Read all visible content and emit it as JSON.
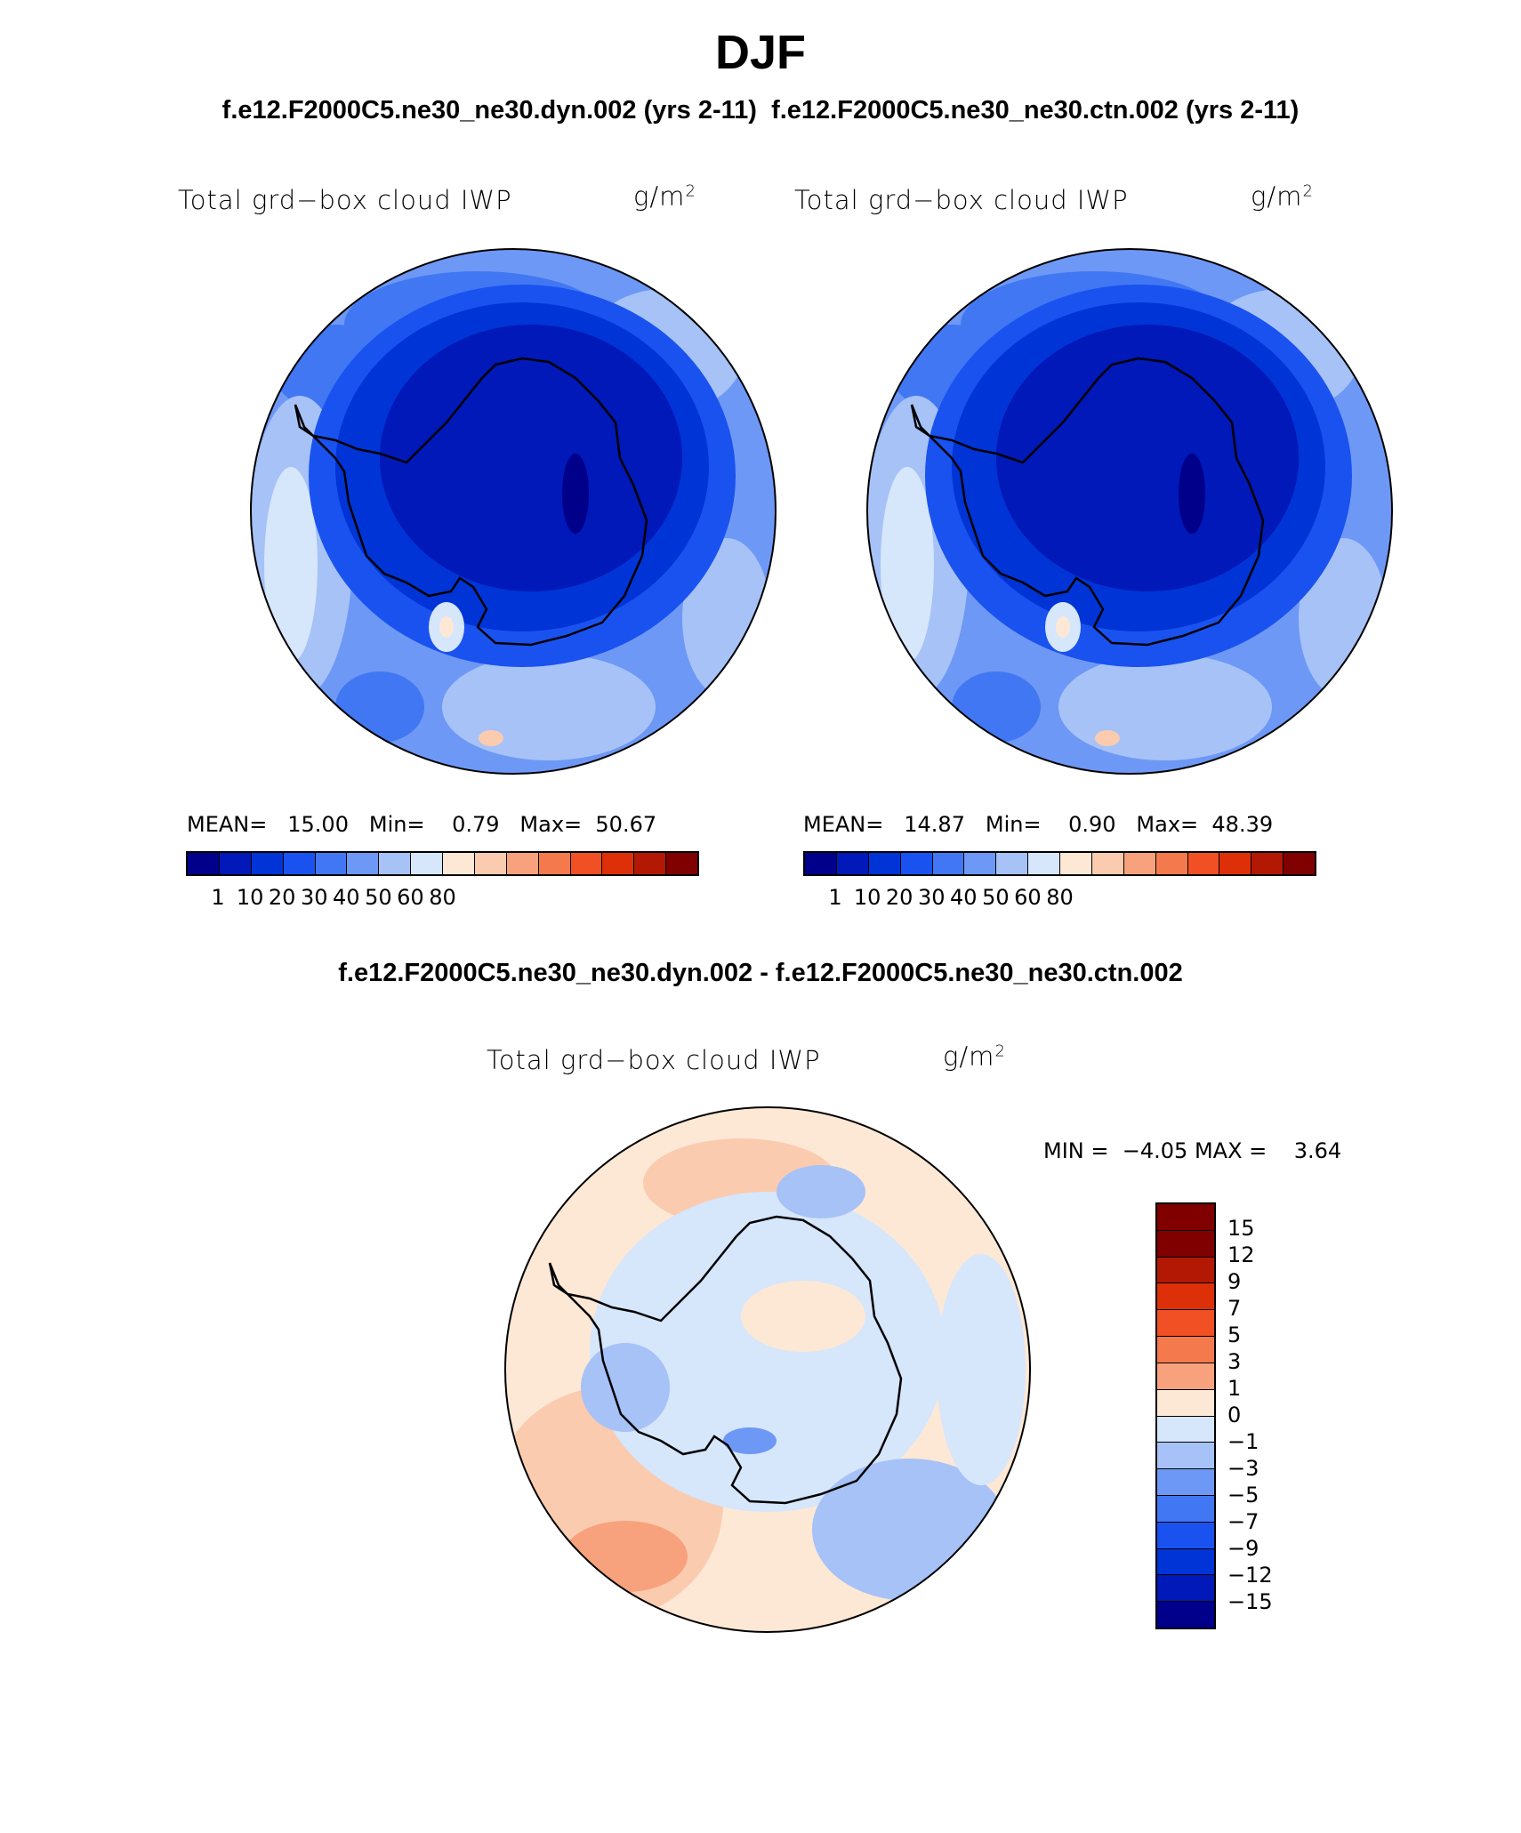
{
  "title": "DJF",
  "subtitle": "f.e12.F2000C5.ne30_ne30.dyn.002 (yrs 2-11)  f.e12.F2000C5.ne30_ne30.ctn.002 (yrs 2-11)",
  "diff_title": "f.e12.F2000C5.ne30_ne30.dyn.002 - f.e12.F2000C5.ne30_ne30.ctn.002",
  "field_label": "Total grd−box cloud IWP",
  "units_base": "g/m",
  "units_exp": "2",
  "stats_mean_label": "MEAN=",
  "stats_min_label": "Min=",
  "stats_max_label": "Max=",
  "panel1": {
    "mean": "15.00",
    "min": "0.79",
    "max": "50.67"
  },
  "panel2": {
    "mean": "14.87",
    "min": "0.90",
    "max": "48.39"
  },
  "diff_stats": {
    "min_label": "MIN =",
    "min": "−4.05",
    "max_label": "MAX =",
    "max": "3.64"
  },
  "colorbar_ticks": [
    "1",
    "10",
    "20",
    "30",
    "40",
    "50",
    "60",
    "80"
  ],
  "colorbar_colors": [
    "#00008a",
    "#0019b8",
    "#0034d6",
    "#1a52f0",
    "#4177f2",
    "#6e98f5",
    "#a6c2f7",
    "#d6e6fb",
    "#fde8d6",
    "#fbcbb0",
    "#f7a27c",
    "#f47a4e",
    "#f05024",
    "#dd3008",
    "#b31804",
    "#800000"
  ],
  "diff_ticks": [
    "15",
    "12",
    "9",
    "7",
    "5",
    "3",
    "1",
    "0",
    "−1",
    "−3",
    "−5",
    "−7",
    "−9",
    "−12",
    "−15"
  ],
  "diff_colors": [
    "#800000",
    "#b31804",
    "#dd3008",
    "#f05024",
    "#f47a4e",
    "#f7a27c",
    "#fde8d6",
    "#d6e6fb",
    "#a6c2f7",
    "#6e98f5",
    "#4177f2",
    "#1a52f0",
    "#0034d6",
    "#0019b8",
    "#00008a"
  ]
}
